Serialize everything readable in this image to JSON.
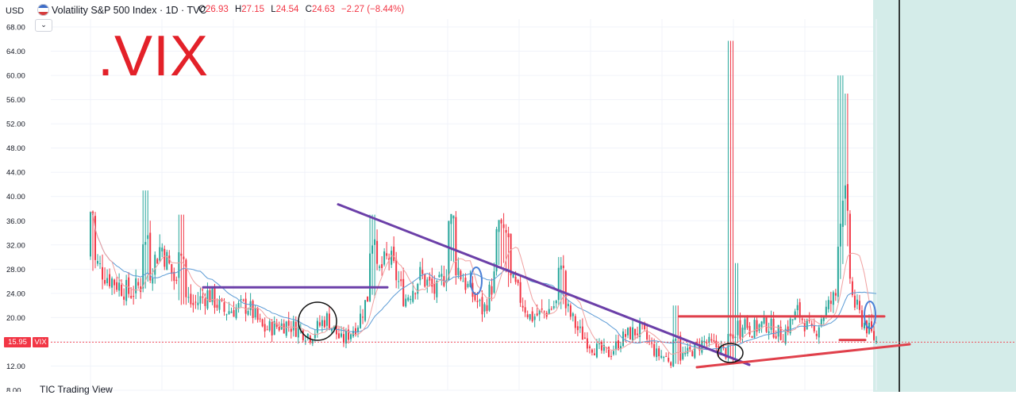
{
  "header": {
    "currency": "USD",
    "title": "Volatility S&P 500 Index · 1D · TVC",
    "ohlc": [
      {
        "key": "O",
        "value": "26.93"
      },
      {
        "key": "H",
        "value": "27.15"
      },
      {
        "key": "L",
        "value": "24.54"
      },
      {
        "key": "C",
        "value": "24.63"
      },
      {
        "key": "",
        "value": "−2.27 (−8.44%)"
      }
    ],
    "collapse_icon": "chevron-down-icon"
  },
  "annotation_text": ".VIX",
  "price_tag": {
    "value": "15.95",
    "symbol": "VIX"
  },
  "footer_text": "TIC Trading View",
  "colors": {
    "up": "#26a69a",
    "down": "#f23645",
    "ma_fast": "#f0a0a0",
    "ma_slow": "#5b9bd5",
    "purple_lines": "#6b3fa8",
    "red_lines": "#e0404b",
    "blue_marks": "#4a7fd6",
    "future_zone": "#d4ece9",
    "annotation_text": "#e32129"
  },
  "chart_data": {
    "type": "candlestick",
    "title": "Volatility S&P 500 Index · 1D · TVC",
    "ylim": [
      8,
      68
    ],
    "yticks": [
      "68.00",
      "64.00",
      "60.00",
      "56.00",
      "52.00",
      "48.00",
      "44.00",
      "40.00",
      "36.00",
      "32.00",
      "28.00",
      "24.00",
      "20.00",
      "16.00",
      "12.00",
      "8.00"
    ],
    "grid": true,
    "last_price": 15.95,
    "trend_points": [
      {
        "x": 0.0,
        "y": 30
      },
      {
        "x": 0.02,
        "y": 27
      },
      {
        "x": 0.05,
        "y": 24
      },
      {
        "x": 0.07,
        "y": 26
      },
      {
        "x": 0.09,
        "y": 32
      },
      {
        "x": 0.11,
        "y": 25
      },
      {
        "x": 0.13,
        "y": 22
      },
      {
        "x": 0.15,
        "y": 24
      },
      {
        "x": 0.17,
        "y": 21
      },
      {
        "x": 0.2,
        "y": 22
      },
      {
        "x": 0.22,
        "y": 18
      },
      {
        "x": 0.25,
        "y": 19
      },
      {
        "x": 0.28,
        "y": 17
      },
      {
        "x": 0.3,
        "y": 20
      },
      {
        "x": 0.32,
        "y": 16
      },
      {
        "x": 0.34,
        "y": 19
      },
      {
        "x": 0.36,
        "y": 26
      },
      {
        "x": 0.38,
        "y": 30
      },
      {
        "x": 0.4,
        "y": 23
      },
      {
        "x": 0.42,
        "y": 27
      },
      {
        "x": 0.44,
        "y": 24
      },
      {
        "x": 0.46,
        "y": 30
      },
      {
        "x": 0.48,
        "y": 25
      },
      {
        "x": 0.5,
        "y": 21
      },
      {
        "x": 0.52,
        "y": 29
      },
      {
        "x": 0.54,
        "y": 25
      },
      {
        "x": 0.56,
        "y": 20
      },
      {
        "x": 0.58,
        "y": 21
      },
      {
        "x": 0.6,
        "y": 23
      },
      {
        "x": 0.62,
        "y": 18
      },
      {
        "x": 0.64,
        "y": 15
      },
      {
        "x": 0.66,
        "y": 14
      },
      {
        "x": 0.68,
        "y": 17
      },
      {
        "x": 0.7,
        "y": 18
      },
      {
        "x": 0.72,
        "y": 14
      },
      {
        "x": 0.74,
        "y": 13
      },
      {
        "x": 0.76,
        "y": 14
      },
      {
        "x": 0.78,
        "y": 16
      },
      {
        "x": 0.8,
        "y": 15
      },
      {
        "x": 0.82,
        "y": 13
      },
      {
        "x": 0.83,
        "y": 20
      },
      {
        "x": 0.84,
        "y": 18
      },
      {
        "x": 0.86,
        "y": 19
      },
      {
        "x": 0.88,
        "y": 17
      },
      {
        "x": 0.9,
        "y": 21
      },
      {
        "x": 0.92,
        "y": 17
      },
      {
        "x": 0.93,
        "y": 20
      },
      {
        "x": 0.95,
        "y": 24
      },
      {
        "x": 0.96,
        "y": 34
      },
      {
        "x": 0.97,
        "y": 23
      },
      {
        "x": 0.98,
        "y": 20
      },
      {
        "x": 1.0,
        "y": 16
      }
    ],
    "spikes": [
      {
        "x": 0.0,
        "high": 37
      },
      {
        "x": 0.07,
        "high": 41
      },
      {
        "x": 0.115,
        "high": 37
      },
      {
        "x": 0.36,
        "high": 37
      },
      {
        "x": 0.46,
        "high": 36
      },
      {
        "x": 0.52,
        "high": 35
      },
      {
        "x": 0.53,
        "high": 35
      },
      {
        "x": 0.6,
        "high": 30
      },
      {
        "x": 0.745,
        "high": 22
      },
      {
        "x": 0.816,
        "high": 65.7
      },
      {
        "x": 0.82,
        "high": 29
      },
      {
        "x": 0.955,
        "high": 60
      },
      {
        "x": 0.96,
        "high": 57
      }
    ],
    "drawings": [
      {
        "type": "horizontal",
        "color": "purple",
        "value": 25
      },
      {
        "type": "trendline",
        "color": "purple",
        "from_value": 38.7,
        "to_value": 12.2
      },
      {
        "type": "horizontal",
        "color": "red",
        "value": 20.2
      },
      {
        "type": "horizontal",
        "color": "red",
        "value": 16.3
      },
      {
        "type": "trendline",
        "color": "red",
        "from_value": 11.8,
        "to_value": 15.6
      }
    ]
  }
}
